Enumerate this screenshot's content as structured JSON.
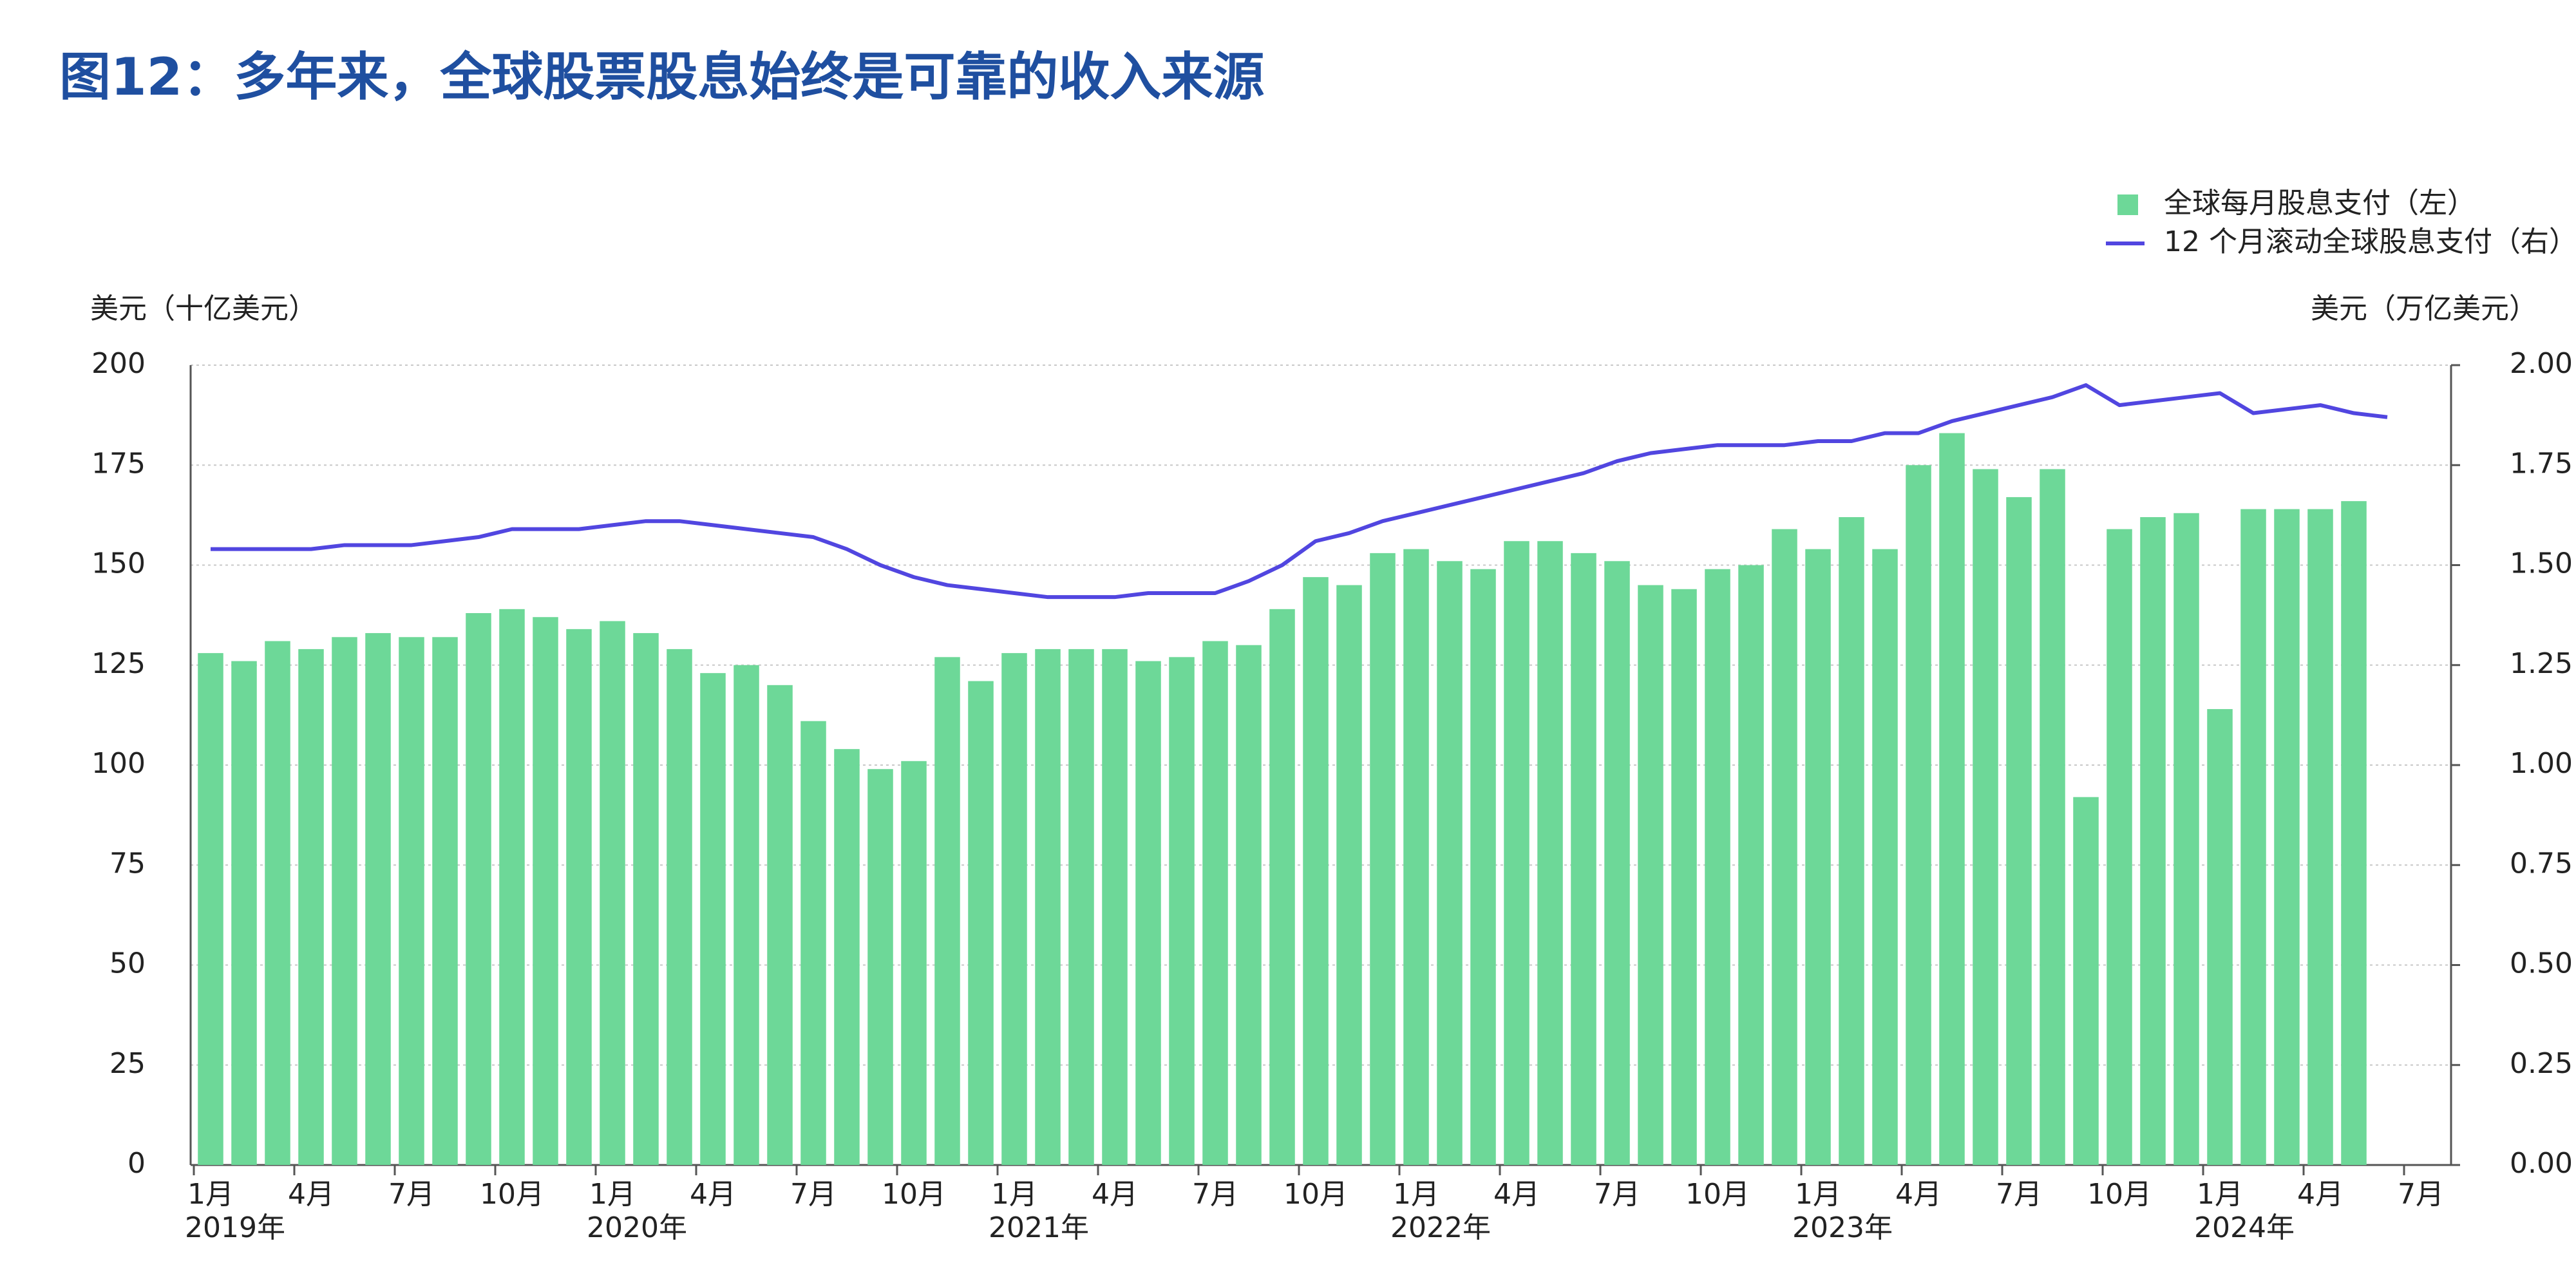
{
  "chart_data": {
    "type": "bar_line",
    "title": "图12：多年来，全球股票股息始终是可靠的收入来源",
    "y_axis_label": "美元（十亿美元）",
    "y2_axis_label": "美元（万亿美元）",
    "categories": [
      "1月",
      null,
      null,
      "4月",
      null,
      null,
      "7月",
      null,
      null,
      "10月",
      null,
      null,
      "1月",
      null,
      null,
      "4月",
      null,
      null,
      "7月",
      null,
      null,
      "10月",
      null,
      null,
      "1月",
      null,
      null,
      "4月",
      null,
      null,
      "7月",
      null,
      null,
      "10月",
      null,
      null,
      "1月",
      null,
      null,
      "4月",
      null,
      null,
      "7月",
      null,
      null,
      "10月",
      null,
      null,
      "1月",
      null,
      null,
      "4月",
      null,
      null,
      "7月",
      null,
      null,
      "10月",
      null,
      null,
      "1月",
      null,
      null,
      "4月",
      null,
      null,
      "7月"
    ],
    "years": [
      "2019年",
      "2020年",
      "2021年",
      "2022年",
      "2023年",
      "2024年"
    ],
    "series": [
      {
        "name": "全球每月股息支付（左）",
        "kind": "bar",
        "color": "#6dd898",
        "values": [
          128,
          126,
          131,
          129,
          132,
          133,
          132,
          132,
          138,
          139,
          137,
          134,
          136,
          133,
          129,
          123,
          125,
          120,
          111,
          104,
          99,
          101,
          127,
          121,
          128,
          129,
          129,
          129,
          126,
          127,
          131,
          130,
          139,
          147,
          145,
          153,
          154,
          151,
          149,
          156,
          156,
          153,
          151,
          145,
          144,
          149,
          150,
          159,
          154,
          162,
          154,
          175,
          183,
          174,
          167,
          174,
          92,
          159,
          162,
          163,
          114,
          164,
          164,
          164,
          166,
          null,
          null
        ]
      },
      {
        "name": "12 个月滚动全球股息支付（右）",
        "kind": "line",
        "axis": "y2",
        "color": "#5146e0",
        "values": [
          1.54,
          1.54,
          1.54,
          1.54,
          1.55,
          1.55,
          1.55,
          1.56,
          1.57,
          1.59,
          1.59,
          1.59,
          1.6,
          1.61,
          1.61,
          1.6,
          1.59,
          1.58,
          1.57,
          1.54,
          1.5,
          1.47,
          1.45,
          1.44,
          1.43,
          1.42,
          1.42,
          1.42,
          1.43,
          1.43,
          1.43,
          1.46,
          1.5,
          1.56,
          1.58,
          1.61,
          1.63,
          1.65,
          1.67,
          1.69,
          1.71,
          1.73,
          1.76,
          1.78,
          1.79,
          1.8,
          1.8,
          1.8,
          1.81,
          1.81,
          1.83,
          1.83,
          1.86,
          1.88,
          1.9,
          1.92,
          1.95,
          1.9,
          1.91,
          1.92,
          1.93,
          1.88,
          1.89,
          1.9,
          1.88,
          1.87,
          null
        ]
      }
    ],
    "ylim": [
      0,
      200
    ],
    "yticks": [
      0,
      25,
      50,
      75,
      100,
      125,
      150,
      175,
      200
    ],
    "y2lim": [
      0,
      2
    ],
    "y2ticks": [
      {
        "value": 0,
        "label": "0.00"
      },
      {
        "value": 0.25,
        "label": "0.25"
      },
      {
        "value": 0.5,
        "label": "0.50"
      },
      {
        "value": 0.75,
        "label": "0.75"
      },
      {
        "value": 1,
        "label": "1.00"
      },
      {
        "value": 1.25,
        "label": "1.25"
      },
      {
        "value": 1.5,
        "label": "1.50"
      },
      {
        "value": 1.75,
        "label": "1.75"
      },
      {
        "value": 2,
        "label": "2.00"
      }
    ],
    "grid": true,
    "legend": "top-right"
  }
}
